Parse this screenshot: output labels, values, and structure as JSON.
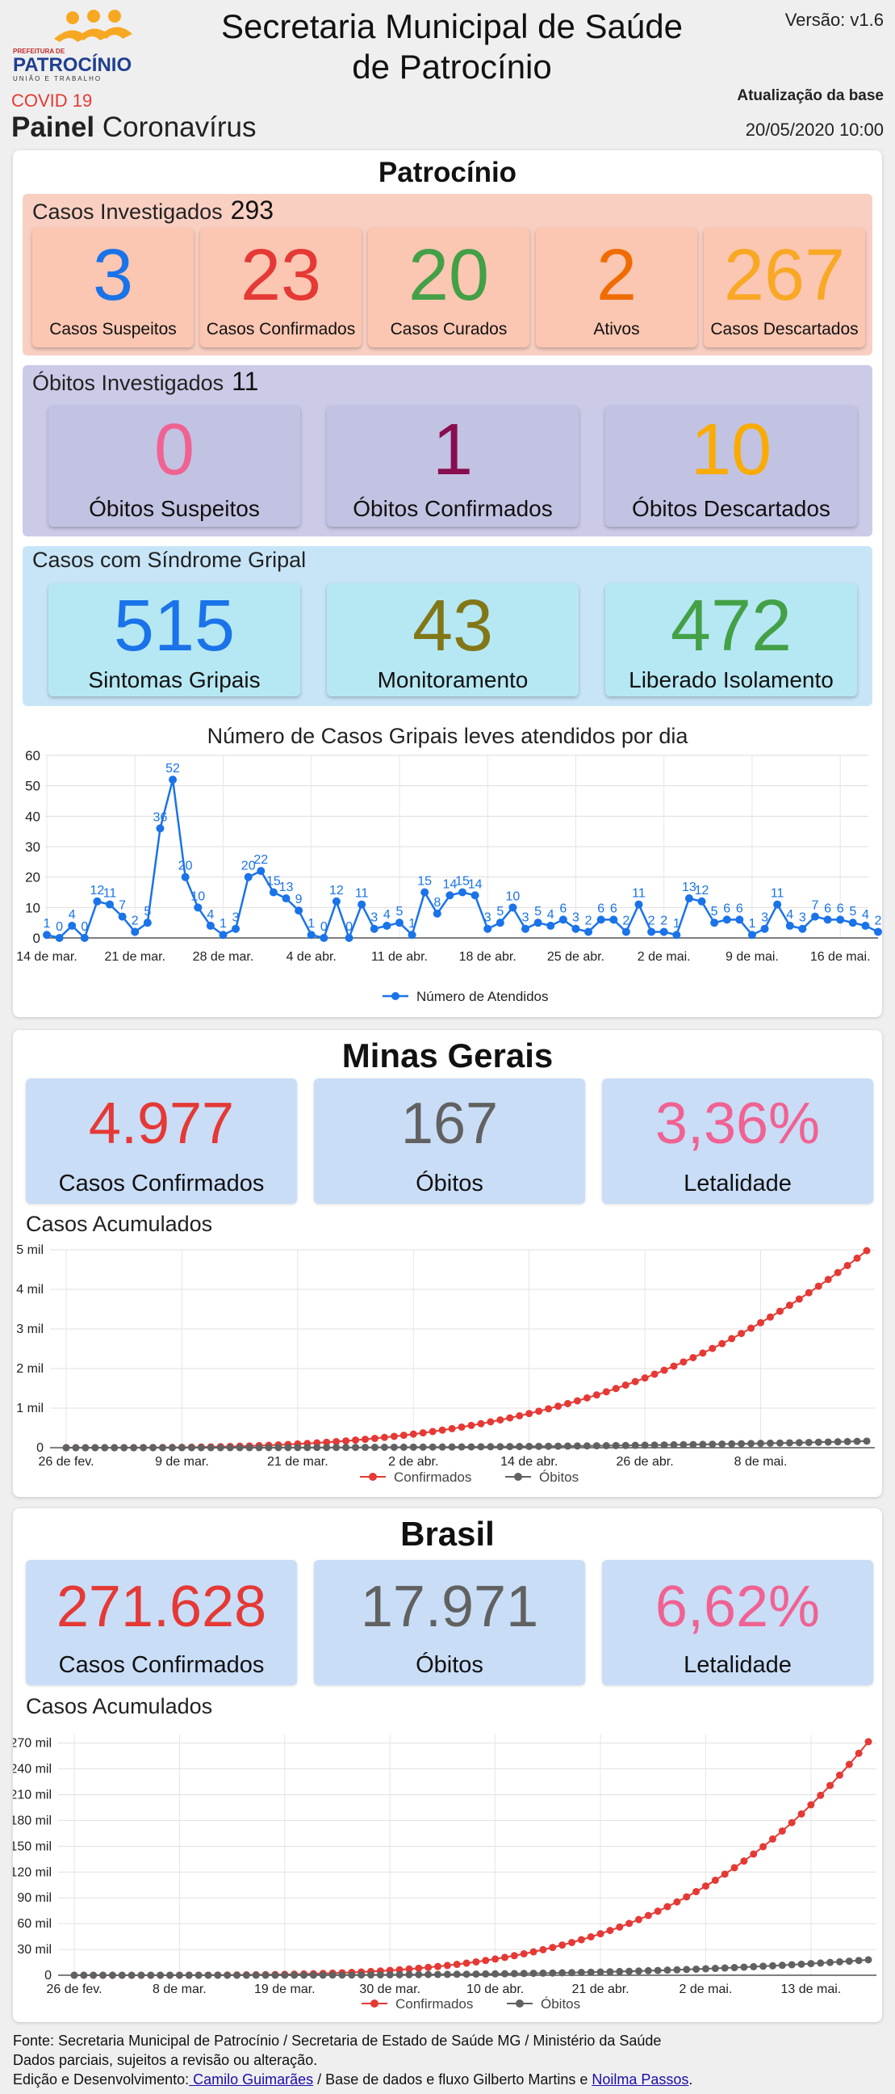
{
  "header": {
    "logo_top": "PREFEITURA DE",
    "logo_main": "PATROCÍNIO",
    "logo_sub": "UNIÃO E TRABALHO",
    "title_line1": "Secretaria Municipal de Saúde",
    "title_line2": "de Patrocínio",
    "version": "Versão: v1.6",
    "covid": "COVID 19",
    "painel_bold": "Painel",
    "painel_rest": "Coronavírus",
    "update_label": "Atualização da base",
    "update_date": "20/05/2020 10:00"
  },
  "patrocinio": {
    "title": "Patrocínio",
    "casos": {
      "label": "Casos Investigados",
      "value": "293",
      "cards": [
        {
          "value": "3",
          "label": "Casos Suspeitos",
          "color": "#1a73e8"
        },
        {
          "value": "23",
          "label": "Casos Confirmados",
          "color": "#e53935"
        },
        {
          "value": "20",
          "label": "Casos Curados",
          "color": "#43a047"
        },
        {
          "value": "2",
          "label": "Ativos",
          "color": "#ef6c00"
        },
        {
          "value": "267",
          "label": "Casos Descartados",
          "color": "#f9a825"
        }
      ]
    },
    "obitos": {
      "label": "Óbitos Investigados",
      "value": "11",
      "cards": [
        {
          "value": "0",
          "label": "Óbitos Suspeitos",
          "color": "#f06292"
        },
        {
          "value": "1",
          "label": "Óbitos Confirmados",
          "color": "#880e4f"
        },
        {
          "value": "10",
          "label": "Óbitos Descartados",
          "color": "#f9ab00"
        }
      ]
    },
    "gripal": {
      "label": "Casos com Síndrome Gripal",
      "cards": [
        {
          "value": "515",
          "label": "Sintomas Gripais",
          "color": "#1a73e8"
        },
        {
          "value": "43",
          "label": "Monitoramento",
          "color": "#827717"
        },
        {
          "value": "472",
          "label": "Liberado Isolamento",
          "color": "#43a047"
        }
      ]
    }
  },
  "minas": {
    "title": "Minas Gerais",
    "cards": [
      {
        "value": "4.977",
        "label": "Casos Confirmados",
        "color": "#e53935"
      },
      {
        "value": "167",
        "label": "Óbitos",
        "color": "#616161"
      },
      {
        "value": "3,36%",
        "label": "Letalidade",
        "color": "#f06292"
      }
    ],
    "chart_label": "Casos Acumulados"
  },
  "brasil": {
    "title": "Brasil",
    "cards": [
      {
        "value": "271.628",
        "label": "Casos Confirmados",
        "color": "#e53935"
      },
      {
        "value": "17.971",
        "label": "Óbitos",
        "color": "#616161"
      },
      {
        "value": "6,62%",
        "label": "Letalidade",
        "color": "#f06292"
      }
    ],
    "chart_label": "Casos Acumulados"
  },
  "footer": {
    "line1": "Fonte: Secretaria Municipal de Patrocínio / Secretaria de Estado de Saúde MG / Ministério da Saúde",
    "line2": "Dados parciais, sujeitos a revisão ou alteração.",
    "line3_pre": "Edição e Desenvolvimento:",
    "line3_link1": " Camilo Guimarães",
    "line3_mid": " / Base de dados e fluxo Gilberto Martins e ",
    "line3_link2": "Noilma Passos",
    "line3_end": "."
  },
  "chart_data": [
    {
      "type": "line",
      "title": "Número de Casos Gripais leves atendidos por dia",
      "series": [
        {
          "name": "Número de Atendidos",
          "color": "#1a73e8",
          "values": [
            1,
            0,
            4,
            0,
            12,
            11,
            7,
            2,
            5,
            36,
            52,
            20,
            10,
            4,
            1,
            3,
            20,
            22,
            15,
            13,
            9,
            1,
            0,
            12,
            0,
            11,
            3,
            4,
            5,
            1,
            15,
            8,
            14,
            15,
            14,
            3,
            5,
            10,
            3,
            5,
            4,
            6,
            3,
            2,
            6,
            6,
            2,
            11,
            2,
            2,
            1,
            13,
            12,
            5,
            6,
            6,
            1,
            3,
            11,
            4,
            3,
            7,
            6,
            6,
            5,
            4,
            2
          ]
        }
      ],
      "x_start": "14 de mar.",
      "x_end": "19 de mai.",
      "x_ticks": [
        "14 de mar.",
        "21 de mar.",
        "28 de mar.",
        "4 de abr.",
        "11 de abr.",
        "18 de abr.",
        "25 de abr.",
        "2 de mai.",
        "9 de mai.",
        "16 de mai."
      ],
      "y_ticks": [
        "0",
        "10",
        "20",
        "30",
        "40",
        "50",
        "60"
      ],
      "ylim": [
        0,
        60
      ],
      "grid": true,
      "legend": "bottom"
    },
    {
      "type": "line",
      "title": "Casos Acumulados",
      "x_start": "26 de fev.",
      "x_end": "20 de mai.",
      "x_ticks": [
        "26 de fev.",
        "9 de mar.",
        "21 de mar.",
        "2 de abr.",
        "14 de abr.",
        "26 de abr.",
        "8 de mai."
      ],
      "y_ticks": [
        "0",
        "1 mil",
        "2 mil",
        "3 mil",
        "4 mil",
        "5 mil"
      ],
      "ylim": [
        0,
        5000
      ],
      "series": [
        {
          "name": "Confirmados",
          "color": "#e53935",
          "end_value": 4977
        },
        {
          "name": "Óbitos",
          "color": "#616161",
          "end_value": 167
        }
      ],
      "grid": true,
      "legend": "bottom"
    },
    {
      "type": "line",
      "title": "Casos Acumulados",
      "x_start": "26 de fev.",
      "x_end": "20 de mai.",
      "x_ticks": [
        "26 de fev.",
        "8 de mar.",
        "19 de mar.",
        "30 de mar.",
        "10 de abr.",
        "21 de abr.",
        "2 de mai.",
        "13 de mai."
      ],
      "y_ticks": [
        "0",
        "30 mil",
        "60 mil",
        "90 mil",
        "120 mil",
        "150 mil",
        "180 mil",
        "210 mil",
        "240 mil",
        "270 mil"
      ],
      "ylim": [
        0,
        280000
      ],
      "series": [
        {
          "name": "Confirmados",
          "color": "#e53935",
          "end_value": 271628
        },
        {
          "name": "Óbitos",
          "color": "#616161",
          "end_value": 17971
        }
      ],
      "grid": true,
      "legend": "bottom"
    }
  ]
}
